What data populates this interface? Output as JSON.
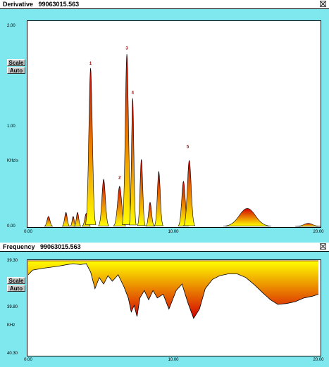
{
  "derivative": {
    "title": "Derivative   99063015.563",
    "y_ticks": [
      {
        "label": "2.00",
        "v": 2.0
      },
      {
        "label": "1.00",
        "v": 1.0
      },
      {
        "label": "0.00",
        "v": 0.0
      }
    ],
    "ylabel": "KHz/s",
    "x_ticks": [
      {
        "label": "0.00",
        "v": 0
      },
      {
        "label": "10.00",
        "v": 10
      },
      {
        "label": "20.00",
        "v": 20
      }
    ],
    "scale_btn": "Scale",
    "auto_btn": "Auto",
    "peak_labels": [
      {
        "label": "1",
        "x": 4.3,
        "y": 1.6
      },
      {
        "label": "2",
        "x": 6.3,
        "y": 0.46
      },
      {
        "label": "3",
        "x": 6.8,
        "y": 1.75
      },
      {
        "label": "4",
        "x": 7.2,
        "y": 1.31
      },
      {
        "label": "5",
        "x": 11.0,
        "y": 0.77
      }
    ]
  },
  "frequency": {
    "title": "Frequency   99063015.563",
    "y_ticks": [
      {
        "label": "39.30",
        "v": 39.3
      },
      {
        "label": "39.80",
        "v": 39.8
      },
      {
        "label": "40.30",
        "v": 40.3
      }
    ],
    "ylabel": "KHz",
    "x_ticks": [
      {
        "label": "0.00",
        "v": 0
      },
      {
        "label": "10.00",
        "v": 10
      },
      {
        "label": "20.00",
        "v": 20
      }
    ],
    "scale_btn": "Scale",
    "auto_btn": "Auto"
  },
  "colors": {
    "background": "#7fe7ee",
    "fill_top": "#d40000",
    "fill_bottom": "#ffff00",
    "titlebar": "#ffffff"
  },
  "chart_data": [
    {
      "type": "area",
      "title": "Derivative",
      "ylabel": "KHz/s",
      "xlim": [
        0,
        20
      ],
      "ylim": [
        0,
        2
      ],
      "peaks": [
        {
          "center": 1.4,
          "height": 0.1,
          "width": 0.1
        },
        {
          "center": 2.6,
          "height": 0.14,
          "width": 0.09
        },
        {
          "center": 3.1,
          "height": 0.1,
          "width": 0.07
        },
        {
          "center": 3.4,
          "height": 0.14,
          "width": 0.08
        },
        {
          "center": 4.0,
          "height": 0.13,
          "width": 0.1
        },
        {
          "center": 4.3,
          "height": 1.58,
          "width": 0.12
        },
        {
          "center": 5.2,
          "height": 0.47,
          "width": 0.12
        },
        {
          "center": 6.3,
          "height": 0.4,
          "width": 0.14
        },
        {
          "center": 6.8,
          "height": 1.72,
          "width": 0.11
        },
        {
          "center": 7.2,
          "height": 1.28,
          "width": 0.08
        },
        {
          "center": 7.8,
          "height": 0.67,
          "width": 0.09
        },
        {
          "center": 8.4,
          "height": 0.24,
          "width": 0.1
        },
        {
          "center": 9.0,
          "height": 0.55,
          "width": 0.1
        },
        {
          "center": 10.7,
          "height": 0.45,
          "width": 0.12
        },
        {
          "center": 11.1,
          "height": 0.66,
          "width": 0.13
        },
        {
          "center": 15.1,
          "height": 0.18,
          "width": 0.55
        },
        {
          "center": 19.3,
          "height": 0.03,
          "width": 0.3
        }
      ]
    },
    {
      "type": "area",
      "title": "Frequency",
      "ylabel": "KHz",
      "xlim": [
        0,
        20
      ],
      "ylim": [
        40.3,
        39.3
      ],
      "x": [
        0,
        0.3,
        1,
        2,
        2.7,
        3.1,
        3.6,
        4.0,
        4.3,
        4.6,
        4.9,
        5.2,
        5.5,
        5.8,
        6.2,
        6.6,
        6.9,
        7.1,
        7.3,
        7.5,
        7.7,
        8.0,
        8.3,
        8.6,
        8.9,
        9.3,
        9.7,
        10.2,
        10.6,
        11.0,
        11.4,
        11.8,
        12.2,
        12.7,
        13.2,
        13.8,
        14.4,
        15.0,
        15.6,
        16.2,
        16.7,
        17.2,
        17.8,
        18.4,
        19.0,
        19.6,
        20.0
      ],
      "y": [
        39.45,
        39.4,
        39.38,
        39.36,
        39.34,
        39.33,
        39.34,
        39.33,
        39.42,
        39.6,
        39.48,
        39.55,
        39.46,
        39.52,
        39.45,
        39.58,
        39.7,
        39.85,
        39.78,
        39.9,
        39.7,
        39.62,
        39.72,
        39.62,
        39.7,
        39.66,
        39.82,
        39.62,
        39.55,
        39.75,
        39.92,
        39.82,
        39.6,
        39.5,
        39.46,
        39.44,
        39.44,
        39.48,
        39.56,
        39.65,
        39.72,
        39.77,
        39.76,
        39.74,
        39.7,
        39.68,
        39.66
      ]
    }
  ]
}
